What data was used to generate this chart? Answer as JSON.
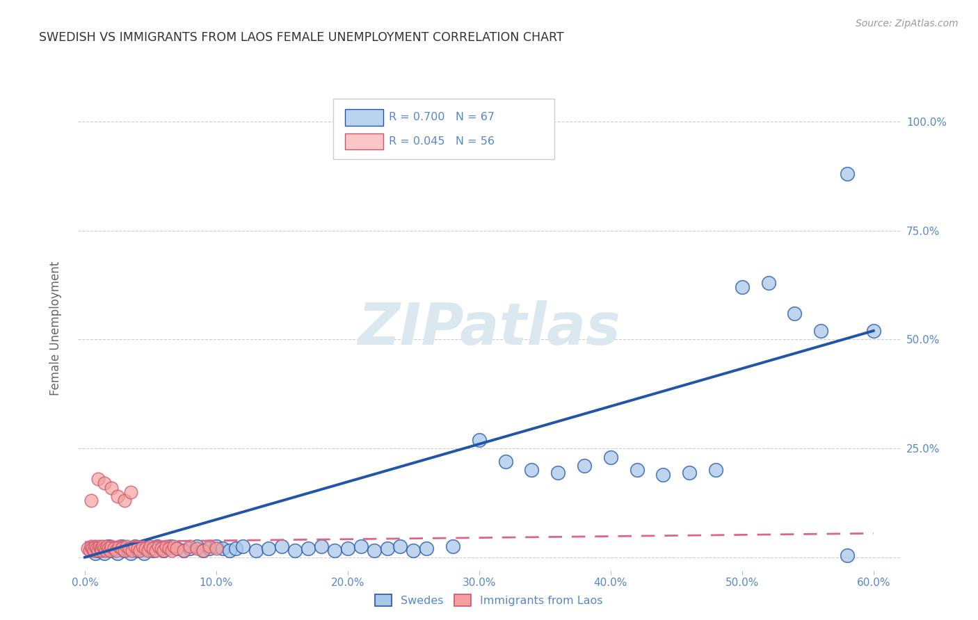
{
  "title": "SWEDISH VS IMMIGRANTS FROM LAOS FEMALE UNEMPLOYMENT CORRELATION CHART",
  "source": "Source: ZipAtlas.com",
  "ylabel": "Female Unemployment",
  "xlim": [
    -0.005,
    0.62
  ],
  "ylim": [
    -0.03,
    1.08
  ],
  "yticks": [
    0.0,
    0.25,
    0.5,
    0.75,
    1.0
  ],
  "xticks": [
    0.0,
    0.1,
    0.2,
    0.3,
    0.4,
    0.5,
    0.6
  ],
  "xtick_labels": [
    "0.0%",
    "10.0%",
    "20.0%",
    "30.0%",
    "40.0%",
    "50.0%",
    "60.0%"
  ],
  "ytick_labels_right": [
    "100.0%",
    "75.0%",
    "50.0%",
    "25.0%",
    ""
  ],
  "swedes_R": 0.7,
  "swedes_N": 67,
  "laos_R": 0.045,
  "laos_N": 56,
  "swedes_color": "#a8c8e8",
  "laos_color": "#f4a0a0",
  "regression_blue_color": "#2255aa",
  "regression_pink_color": "#dd6688",
  "background_color": "#ffffff",
  "title_color": "#333333",
  "title_fontsize": 12.5,
  "axis_label_color": "#666666",
  "tick_color": "#5588cc",
  "watermark_color": "#dce8f0",
  "grid_color": "#cccccc",
  "legend_box_color_blue": "#b8d4ee",
  "legend_box_color_pink": "#f8c8c8",
  "swedes_x": [
    0.005,
    0.008,
    0.01,
    0.012,
    0.015,
    0.018,
    0.02,
    0.022,
    0.025,
    0.028,
    0.03,
    0.032,
    0.035,
    0.038,
    0.04,
    0.042,
    0.045,
    0.048,
    0.05,
    0.052,
    0.055,
    0.058,
    0.06,
    0.065,
    0.07,
    0.075,
    0.08,
    0.085,
    0.09,
    0.095,
    0.1,
    0.105,
    0.11,
    0.115,
    0.12,
    0.13,
    0.14,
    0.15,
    0.16,
    0.17,
    0.18,
    0.19,
    0.2,
    0.21,
    0.22,
    0.23,
    0.24,
    0.25,
    0.26,
    0.28,
    0.3,
    0.32,
    0.34,
    0.36,
    0.38,
    0.4,
    0.42,
    0.44,
    0.46,
    0.48,
    0.5,
    0.52,
    0.54,
    0.56,
    0.58,
    0.6,
    0.58
  ],
  "swedes_y": [
    0.02,
    0.01,
    0.015,
    0.02,
    0.01,
    0.025,
    0.015,
    0.02,
    0.01,
    0.025,
    0.015,
    0.02,
    0.01,
    0.025,
    0.015,
    0.02,
    0.01,
    0.025,
    0.02,
    0.015,
    0.025,
    0.02,
    0.015,
    0.025,
    0.02,
    0.015,
    0.02,
    0.025,
    0.015,
    0.02,
    0.025,
    0.02,
    0.015,
    0.02,
    0.025,
    0.015,
    0.02,
    0.025,
    0.015,
    0.02,
    0.025,
    0.015,
    0.02,
    0.025,
    0.015,
    0.02,
    0.025,
    0.015,
    0.02,
    0.025,
    0.27,
    0.22,
    0.2,
    0.195,
    0.21,
    0.23,
    0.2,
    0.19,
    0.195,
    0.2,
    0.62,
    0.63,
    0.56,
    0.52,
    0.88,
    0.52,
    0.005
  ],
  "laos_x": [
    0.002,
    0.004,
    0.005,
    0.006,
    0.007,
    0.008,
    0.009,
    0.01,
    0.011,
    0.012,
    0.013,
    0.014,
    0.015,
    0.016,
    0.017,
    0.018,
    0.019,
    0.02,
    0.022,
    0.024,
    0.026,
    0.028,
    0.03,
    0.032,
    0.034,
    0.036,
    0.038,
    0.04,
    0.042,
    0.044,
    0.046,
    0.048,
    0.05,
    0.052,
    0.054,
    0.056,
    0.058,
    0.06,
    0.062,
    0.064,
    0.066,
    0.068,
    0.07,
    0.075,
    0.08,
    0.085,
    0.09,
    0.095,
    0.1,
    0.005,
    0.01,
    0.015,
    0.02,
    0.025,
    0.03,
    0.035
  ],
  "laos_y": [
    0.02,
    0.015,
    0.025,
    0.02,
    0.015,
    0.025,
    0.02,
    0.015,
    0.025,
    0.02,
    0.015,
    0.025,
    0.02,
    0.015,
    0.025,
    0.02,
    0.015,
    0.025,
    0.02,
    0.015,
    0.025,
    0.02,
    0.015,
    0.025,
    0.02,
    0.015,
    0.025,
    0.02,
    0.015,
    0.025,
    0.02,
    0.015,
    0.025,
    0.02,
    0.015,
    0.025,
    0.02,
    0.015,
    0.025,
    0.02,
    0.015,
    0.025,
    0.02,
    0.015,
    0.025,
    0.02,
    0.015,
    0.025,
    0.02,
    0.13,
    0.18,
    0.17,
    0.16,
    0.14,
    0.13,
    0.15
  ],
  "blue_line_x": [
    0.0,
    0.6
  ],
  "blue_line_y": [
    0.0,
    0.52
  ],
  "pink_line_x": [
    0.0,
    0.6
  ],
  "pink_line_y": [
    0.035,
    0.055
  ]
}
